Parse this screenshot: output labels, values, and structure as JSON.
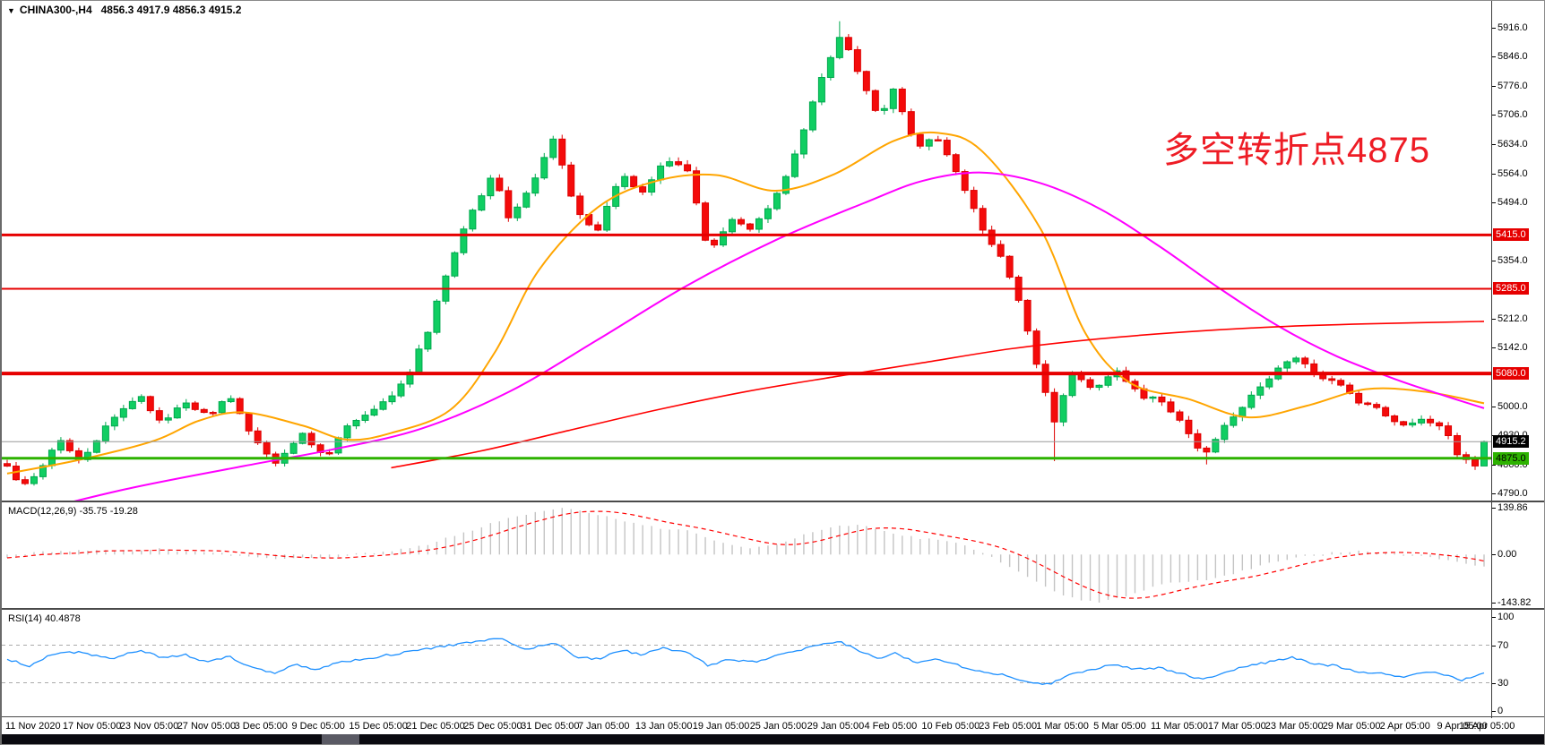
{
  "window": {
    "collapse_icon": "▼",
    "symbol_period": "CHINA300-,H4",
    "ohlc_line": "4856.3 4917.9 4856.3 4915.2"
  },
  "annotation": {
    "text": "多空转折点4875",
    "color": "#EE1C25"
  },
  "colors": {
    "up_fill": "#10CE62",
    "up_border": "#00A84E",
    "down_fill": "#F40B0B",
    "down_border": "#DD0000",
    "ma_fast": "#FFA500",
    "ma_mid": "#FF00FF",
    "ma_slow": "#FF0000",
    "macd_hist": "#C4C4C4",
    "macd_signal": "#FF0000",
    "rsi_line": "#1E90FF",
    "guide_gray": "#aaaaaa",
    "bid_line": "#999999",
    "hline_red": "#E60000",
    "hline_green": "#2DB200",
    "badge_red_bg": "#E60000",
    "badge_red_fg": "#FFFFFF",
    "badge_black_bg": "#000000",
    "badge_black_fg": "#FFFFFF",
    "badge_green_bg": "#2DB200",
    "badge_green_fg": "#000000"
  },
  "price_axis": {
    "labels": [
      {
        "text": "5916.0",
        "price": 5916.0
      },
      {
        "text": "5846.0",
        "price": 5846.0
      },
      {
        "text": "5776.0",
        "price": 5776.0
      },
      {
        "text": "5706.0",
        "price": 5706.0
      },
      {
        "text": "5634.0",
        "price": 5634.0
      },
      {
        "text": "5564.0",
        "price": 5564.0
      },
      {
        "text": "5494.0",
        "price": 5494.0
      },
      {
        "text": "5354.0",
        "price": 5354.0
      },
      {
        "text": "5212.0",
        "price": 5212.0
      },
      {
        "text": "5142.0",
        "price": 5142.0
      },
      {
        "text": "5000.0",
        "price": 5000.0
      },
      {
        "text": "4930.0",
        "price": 4930.0
      },
      {
        "text": "4860.0",
        "price": 4860.0
      },
      {
        "text": "4790.0",
        "price": 4790.0
      }
    ],
    "badges": [
      {
        "text": "5415.0",
        "price": 5415.0,
        "style": "red"
      },
      {
        "text": "5285.0",
        "price": 5285.0,
        "style": "red"
      },
      {
        "text": "5080.0",
        "price": 5080.0,
        "style": "red"
      },
      {
        "text": "4915.2",
        "price": 4915.2,
        "style": "black"
      },
      {
        "text": "4875.0",
        "price": 4875.0,
        "style": "green"
      }
    ]
  },
  "hlines": [
    {
      "price": 5415.0,
      "color_key": "hline_red",
      "width": 3
    },
    {
      "price": 5285.0,
      "color_key": "hline_red",
      "width": 2
    },
    {
      "price": 5080.0,
      "color_key": "hline_red",
      "width": 4
    },
    {
      "price": 4915.2,
      "color_key": "bid_line",
      "width": 1
    },
    {
      "price": 4875.0,
      "color_key": "hline_green",
      "width": 3
    }
  ],
  "x_axis": {
    "labels": [
      "11 Nov 2020",
      "17 Nov 05:00",
      "23 Nov 05:00",
      "27 Nov 05:00",
      "3 Dec 05:00",
      "9 Dec 05:00",
      "15 Dec 05:00",
      "21 Dec 05:00",
      "25 Dec 05:00",
      "31 Dec 05:00",
      "7 Jan 05:00",
      "13 Jan 05:00",
      "19 Jan 05:00",
      "25 Jan 05:00",
      "29 Jan 05:00",
      "4 Feb 05:00",
      "10 Feb 05:00",
      "23 Feb 05:00",
      "1 Mar 05:00",
      "5 Mar 05:00",
      "11 Mar 05:00",
      "17 Mar 05:00",
      "23 Mar 05:00",
      "29 Mar 05:00",
      "2 Apr 05:00",
      "9 Apr 05:00",
      "15 Apr 05:00"
    ]
  },
  "indicators": {
    "macd": {
      "label": "MACD(12,26,9)",
      "values_text": "-35.75 -19.28",
      "macd_value": -35.75,
      "signal_value": -19.28,
      "axis_labels": [
        {
          "text": "139.86",
          "value": 139.86
        },
        {
          "text": "0.00",
          "value": 0
        },
        {
          "text": "-143.82",
          "value": -143.82
        }
      ]
    },
    "rsi": {
      "label": "RSI(14)",
      "value_text": "40.4878",
      "value": 40.4878,
      "axis_labels": [
        {
          "text": "100",
          "value": 100
        },
        {
          "text": "70",
          "value": 70
        },
        {
          "text": "30",
          "value": 30
        },
        {
          "text": "0",
          "value": 0
        }
      ],
      "guides": [
        70,
        30
      ]
    }
  },
  "chart_data": [
    {
      "type": "candlestick",
      "title": "CHINA300-,H4",
      "bars": 166,
      "y_range": [
        4790,
        5946
      ],
      "last_bar": {
        "open": 4856.3,
        "high": 4917.9,
        "low": 4856.3,
        "close": 4915.2
      },
      "support_resistance": [
        5415.0,
        5285.0,
        5080.0,
        4875.0
      ],
      "bid_price": 4915.2,
      "close_waypoints": [
        [
          0,
          4855
        ],
        [
          0.01,
          4802
        ],
        [
          0.022,
          4840
        ],
        [
          0.035,
          4922
        ],
        [
          0.05,
          4872
        ],
        [
          0.07,
          4962
        ],
        [
          0.09,
          5032
        ],
        [
          0.105,
          4952
        ],
        [
          0.12,
          5012
        ],
        [
          0.135,
          4978
        ],
        [
          0.15,
          5022
        ],
        [
          0.165,
          4938
        ],
        [
          0.18,
          4862
        ],
        [
          0.2,
          4932
        ],
        [
          0.215,
          4878
        ],
        [
          0.23,
          4952
        ],
        [
          0.25,
          4992
        ],
        [
          0.27,
          5062
        ],
        [
          0.285,
          5185
        ],
        [
          0.3,
          5352
        ],
        [
          0.315,
          5480
        ],
        [
          0.33,
          5562
        ],
        [
          0.34,
          5452
        ],
        [
          0.355,
          5532
        ],
        [
          0.37,
          5648
        ],
        [
          0.385,
          5478
        ],
        [
          0.4,
          5422
        ],
        [
          0.415,
          5562
        ],
        [
          0.43,
          5518
        ],
        [
          0.445,
          5602
        ],
        [
          0.46,
          5578
        ],
        [
          0.475,
          5372
        ],
        [
          0.49,
          5452
        ],
        [
          0.505,
          5432
        ],
        [
          0.52,
          5502
        ],
        [
          0.535,
          5622
        ],
        [
          0.55,
          5782
        ],
        [
          0.565,
          5905
        ],
        [
          0.578,
          5798
        ],
        [
          0.59,
          5698
        ],
        [
          0.6,
          5762
        ],
        [
          0.615,
          5632
        ],
        [
          0.63,
          5645
        ],
        [
          0.645,
          5558
        ],
        [
          0.66,
          5428
        ],
        [
          0.675,
          5348
        ],
        [
          0.688,
          5222
        ],
        [
          0.7,
          5068
        ],
        [
          0.71,
          4958
        ],
        [
          0.72,
          5082
        ],
        [
          0.735,
          5042
        ],
        [
          0.75,
          5092
        ],
        [
          0.765,
          5032
        ],
        [
          0.78,
          5012
        ],
        [
          0.795,
          4962
        ],
        [
          0.81,
          4878
        ],
        [
          0.825,
          4962
        ],
        [
          0.84,
          5012
        ],
        [
          0.855,
          5072
        ],
        [
          0.87,
          5122
        ],
        [
          0.885,
          5082
        ],
        [
          0.9,
          5058
        ],
        [
          0.915,
          5012
        ],
        [
          0.93,
          4988
        ],
        [
          0.945,
          4958
        ],
        [
          0.96,
          4972
        ],
        [
          0.975,
          4938
        ],
        [
          0.985,
          4866
        ],
        [
          1,
          4915.2
        ]
      ],
      "moving_averages": [
        {
          "name": "ma-fast-orange",
          "color_key": "ma_fast",
          "width": 2,
          "waypoints": [
            [
              0,
              4838
            ],
            [
              0.05,
              4872
            ],
            [
              0.1,
              4918
            ],
            [
              0.13,
              4966
            ],
            [
              0.16,
              4986
            ],
            [
              0.2,
              4954
            ],
            [
              0.23,
              4920
            ],
            [
              0.26,
              4936
            ],
            [
              0.3,
              4992
            ],
            [
              0.33,
              5130
            ],
            [
              0.36,
              5330
            ],
            [
              0.4,
              5482
            ],
            [
              0.44,
              5546
            ],
            [
              0.48,
              5560
            ],
            [
              0.52,
              5522
            ],
            [
              0.56,
              5562
            ],
            [
              0.6,
              5642
            ],
            [
              0.63,
              5662
            ],
            [
              0.66,
              5618
            ],
            [
              0.7,
              5428
            ],
            [
              0.73,
              5178
            ],
            [
              0.76,
              5058
            ],
            [
              0.8,
              5018
            ],
            [
              0.84,
              4974
            ],
            [
              0.88,
              5002
            ],
            [
              0.92,
              5042
            ],
            [
              0.96,
              5036
            ],
            [
              1,
              5008
            ]
          ]
        },
        {
          "name": "ma-mid-magenta",
          "color_key": "ma_mid",
          "width": 2,
          "waypoints": [
            [
              0,
              4730
            ],
            [
              0.08,
              4800
            ],
            [
              0.16,
              4856
            ],
            [
              0.22,
              4896
            ],
            [
              0.28,
              4946
            ],
            [
              0.34,
              5036
            ],
            [
              0.4,
              5162
            ],
            [
              0.46,
              5292
            ],
            [
              0.52,
              5402
            ],
            [
              0.58,
              5492
            ],
            [
              0.62,
              5546
            ],
            [
              0.66,
              5566
            ],
            [
              0.7,
              5540
            ],
            [
              0.74,
              5478
            ],
            [
              0.78,
              5388
            ],
            [
              0.82,
              5288
            ],
            [
              0.86,
              5196
            ],
            [
              0.9,
              5122
            ],
            [
              0.94,
              5066
            ],
            [
              0.97,
              5030
            ],
            [
              1,
              4996
            ]
          ]
        },
        {
          "name": "ma-slow-red",
          "color_key": "ma_slow",
          "width": 1.6,
          "waypoints": [
            [
              0.26,
              4852
            ],
            [
              0.32,
              4892
            ],
            [
              0.38,
              4942
            ],
            [
              0.44,
              4992
            ],
            [
              0.5,
              5036
            ],
            [
              0.56,
              5072
            ],
            [
              0.62,
              5106
            ],
            [
              0.68,
              5140
            ],
            [
              0.74,
              5164
            ],
            [
              0.8,
              5181
            ],
            [
              0.86,
              5193
            ],
            [
              0.92,
              5200
            ],
            [
              1,
              5206
            ]
          ]
        }
      ]
    },
    {
      "type": "bar",
      "name": "MACD",
      "params": "12,26,9",
      "current": -35.75,
      "signal_current": -19.28,
      "y_range": [
        -143.82,
        139.86
      ],
      "value_waypoints": [
        [
          0,
          -8
        ],
        [
          0.02,
          6
        ],
        [
          0.05,
          14
        ],
        [
          0.08,
          10
        ],
        [
          0.1,
          18
        ],
        [
          0.12,
          8
        ],
        [
          0.14,
          6
        ],
        [
          0.16,
          -6
        ],
        [
          0.18,
          -14
        ],
        [
          0.2,
          -10
        ],
        [
          0.22,
          -12
        ],
        [
          0.24,
          2
        ],
        [
          0.26,
          10
        ],
        [
          0.28,
          24
        ],
        [
          0.3,
          52
        ],
        [
          0.33,
          96
        ],
        [
          0.36,
          130
        ],
        [
          0.38,
          139.9
        ],
        [
          0.4,
          120
        ],
        [
          0.42,
          96
        ],
        [
          0.44,
          80
        ],
        [
          0.46,
          72
        ],
        [
          0.48,
          40
        ],
        [
          0.5,
          18
        ],
        [
          0.52,
          28
        ],
        [
          0.54,
          60
        ],
        [
          0.56,
          86
        ],
        [
          0.58,
          90
        ],
        [
          0.6,
          60
        ],
        [
          0.62,
          48
        ],
        [
          0.64,
          40
        ],
        [
          0.66,
          6
        ],
        [
          0.68,
          -40
        ],
        [
          0.7,
          -90
        ],
        [
          0.72,
          -130
        ],
        [
          0.74,
          -143.8
        ],
        [
          0.76,
          -120
        ],
        [
          0.78,
          -90
        ],
        [
          0.8,
          -80
        ],
        [
          0.82,
          -70
        ],
        [
          0.84,
          -45
        ],
        [
          0.86,
          -20
        ],
        [
          0.88,
          -4
        ],
        [
          0.9,
          8
        ],
        [
          0.92,
          12
        ],
        [
          0.94,
          4
        ],
        [
          0.96,
          -6
        ],
        [
          0.98,
          -22
        ],
        [
          1,
          -35.75
        ]
      ]
    },
    {
      "type": "line",
      "name": "RSI",
      "period": 14,
      "current": 40.4878,
      "y_range": [
        0,
        100
      ],
      "guides": [
        70,
        30
      ],
      "waypoints": [
        [
          0,
          55
        ],
        [
          0.015,
          48
        ],
        [
          0.03,
          60
        ],
        [
          0.05,
          63
        ],
        [
          0.07,
          55
        ],
        [
          0.09,
          65
        ],
        [
          0.105,
          56
        ],
        [
          0.12,
          60
        ],
        [
          0.135,
          52
        ],
        [
          0.15,
          58
        ],
        [
          0.165,
          47
        ],
        [
          0.18,
          40
        ],
        [
          0.195,
          50
        ],
        [
          0.21,
          44
        ],
        [
          0.225,
          52
        ],
        [
          0.24,
          55
        ],
        [
          0.26,
          60
        ],
        [
          0.28,
          65
        ],
        [
          0.3,
          70
        ],
        [
          0.32,
          74
        ],
        [
          0.335,
          77
        ],
        [
          0.35,
          65
        ],
        [
          0.37,
          73
        ],
        [
          0.385,
          58
        ],
        [
          0.4,
          55
        ],
        [
          0.415,
          65
        ],
        [
          0.43,
          60
        ],
        [
          0.445,
          67
        ],
        [
          0.46,
          62
        ],
        [
          0.475,
          48
        ],
        [
          0.49,
          55
        ],
        [
          0.505,
          52
        ],
        [
          0.52,
          58
        ],
        [
          0.535,
          64
        ],
        [
          0.55,
          70
        ],
        [
          0.565,
          73
        ],
        [
          0.58,
          62
        ],
        [
          0.59,
          55
        ],
        [
          0.6,
          62
        ],
        [
          0.615,
          52
        ],
        [
          0.63,
          56
        ],
        [
          0.645,
          48
        ],
        [
          0.66,
          42
        ],
        [
          0.675,
          38
        ],
        [
          0.69,
          32
        ],
        [
          0.705,
          28
        ],
        [
          0.72,
          40
        ],
        [
          0.735,
          44
        ],
        [
          0.75,
          50
        ],
        [
          0.765,
          44
        ],
        [
          0.78,
          46
        ],
        [
          0.795,
          40
        ],
        [
          0.81,
          33
        ],
        [
          0.825,
          42
        ],
        [
          0.84,
          48
        ],
        [
          0.855,
          52
        ],
        [
          0.87,
          57
        ],
        [
          0.885,
          50
        ],
        [
          0.9,
          48
        ],
        [
          0.915,
          42
        ],
        [
          0.93,
          40
        ],
        [
          0.945,
          36
        ],
        [
          0.96,
          42
        ],
        [
          0.975,
          38
        ],
        [
          0.985,
          33
        ],
        [
          1,
          40.4878
        ]
      ]
    }
  ]
}
